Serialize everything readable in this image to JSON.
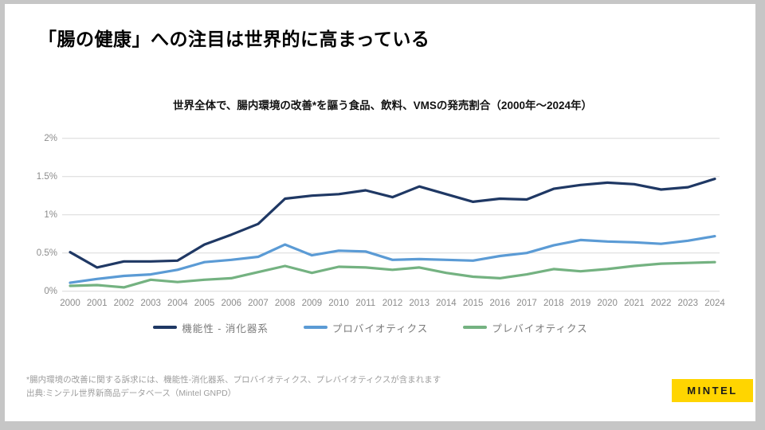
{
  "slide": {
    "title": "「腸の健康」への注目は世界的に高まっている"
  },
  "chart_data": {
    "type": "line",
    "title": "世界全体で、腸内環境の改善*を謳う食品、飲料、VMSの発売割合（2000年〜2024年）",
    "x": [
      "2000",
      "2001",
      "2002",
      "2003",
      "2004",
      "2005",
      "2006",
      "2007",
      "2008",
      "2009",
      "2010",
      "2011",
      "2012",
      "2013",
      "2014",
      "2015",
      "2016",
      "2017",
      "2018",
      "2019",
      "2020",
      "2021",
      "2022",
      "2023",
      "2024"
    ],
    "series": [
      {
        "name": "機能性 - 消化器系",
        "color": "#1F3864",
        "values": [
          0.51,
          0.31,
          0.39,
          0.39,
          0.4,
          0.61,
          0.74,
          0.88,
          1.21,
          1.25,
          1.27,
          1.32,
          1.23,
          1.37,
          1.27,
          1.17,
          1.21,
          1.2,
          1.34,
          1.39,
          1.42,
          1.4,
          1.33,
          1.36,
          1.47
        ]
      },
      {
        "name": "プロバイオティクス",
        "color": "#5B9BD5",
        "values": [
          0.11,
          0.16,
          0.2,
          0.22,
          0.28,
          0.38,
          0.41,
          0.45,
          0.61,
          0.47,
          0.53,
          0.52,
          0.41,
          0.42,
          0.41,
          0.4,
          0.46,
          0.5,
          0.6,
          0.67,
          0.65,
          0.64,
          0.62,
          0.66,
          0.72
        ]
      },
      {
        "name": "プレバイオティクス",
        "color": "#74B281",
        "values": [
          0.07,
          0.08,
          0.05,
          0.15,
          0.12,
          0.15,
          0.17,
          0.25,
          0.33,
          0.24,
          0.32,
          0.31,
          0.28,
          0.31,
          0.24,
          0.19,
          0.17,
          0.22,
          0.29,
          0.26,
          0.29,
          0.33,
          0.36,
          0.37,
          0.38
        ]
      }
    ],
    "ylabel": "",
    "xlabel": "",
    "ylim": [
      0,
      2
    ],
    "yticks": [
      {
        "value": 0,
        "label": "0%"
      },
      {
        "value": 0.5,
        "label": "0.5%"
      },
      {
        "value": 1,
        "label": "1%"
      },
      {
        "value": 1.5,
        "label": "1.5%"
      },
      {
        "value": 2,
        "label": "2%"
      }
    ],
    "grid": true,
    "grid_color": "#d9d9d9",
    "legend_position": "bottom"
  },
  "footnote": {
    "line1": "*腸内環境の改善に関する訴求には、機能性-消化器系、プロバイオティクス、プレバイオティクスが含まれます",
    "line2": "出典:ミンテル世界新商品データベース（Mintel GNPD）"
  },
  "logo": {
    "text": "MINTEL",
    "background": "#FFD500",
    "text_color": "#1a1a1a"
  }
}
